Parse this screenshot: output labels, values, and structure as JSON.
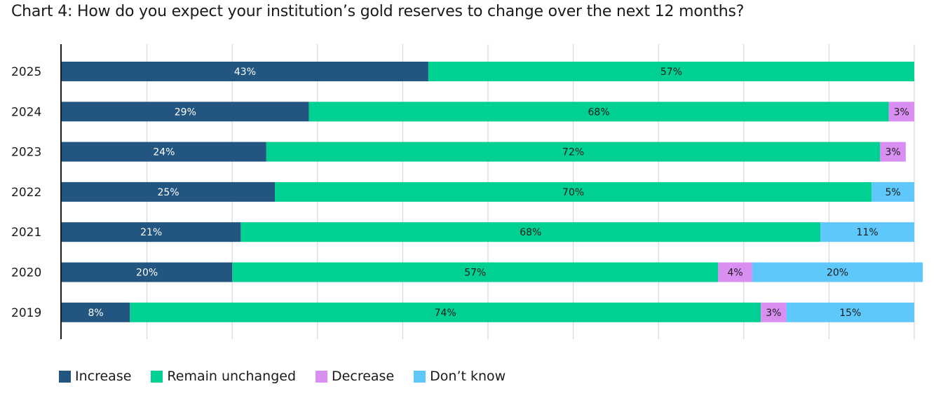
{
  "title": "Chart 4: How do you expect your institution’s gold reserves to change over the next 12 months?",
  "chart_data": {
    "type": "bar",
    "orientation": "horizontal",
    "stacked": true,
    "title": "Chart 4: How do you expect your institution’s gold reserves to change over the next 12 months?",
    "categories": [
      "2025",
      "2024",
      "2023",
      "2022",
      "2021",
      "2020",
      "2019"
    ],
    "series": [
      {
        "name": "Increase",
        "color": "#22557f",
        "label_color": "#ffffff",
        "values": [
          43,
          29,
          24,
          25,
          21,
          20,
          8
        ]
      },
      {
        "name": "Remain unchanged",
        "color": "#00d092",
        "label_color": "#1a1a1a",
        "values": [
          57,
          68,
          72,
          70,
          68,
          57,
          74
        ]
      },
      {
        "name": "Decrease",
        "color": "#d98ff2",
        "label_color": "#1a1a1a",
        "values": [
          0,
          3,
          3,
          0,
          0,
          4,
          3
        ]
      },
      {
        "name": "Don’t know",
        "color": "#5ec8fb",
        "label_color": "#1a1a1a",
        "values": [
          0,
          0,
          0,
          5,
          11,
          20,
          15
        ]
      }
    ],
    "xlim": [
      0,
      100
    ],
    "x_gridlines": [
      0,
      10,
      20,
      30,
      40,
      50,
      60,
      70,
      80,
      90,
      100
    ],
    "grid": true,
    "xlabel": "",
    "ylabel": "",
    "value_suffix": "%",
    "legend_position": "bottom-left"
  }
}
